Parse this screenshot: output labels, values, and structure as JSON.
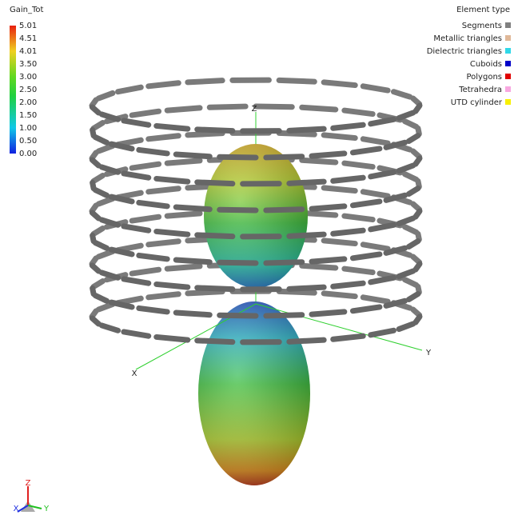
{
  "colorbar": {
    "title": "Gain_Tot",
    "labels": [
      "5.01",
      "4.51",
      "4.01",
      "3.50",
      "3.00",
      "2.50",
      "2.00",
      "1.50",
      "1.00",
      "0.50",
      "0.00"
    ]
  },
  "legend": {
    "title": "Element type",
    "items": [
      {
        "label": "Segments",
        "color": "#808080"
      },
      {
        "label": "Metallic triangles",
        "color": "#e0b898"
      },
      {
        "label": "Dielectric triangles",
        "color": "#30d8e8"
      },
      {
        "label": "Cuboids",
        "color": "#0000c8"
      },
      {
        "label": "Polygons",
        "color": "#e00000"
      },
      {
        "label": "Tetrahedra",
        "color": "#f8a8e0"
      },
      {
        "label": "UTD cylinder",
        "color": "#f8f000"
      }
    ]
  },
  "axes": {
    "z": "Z",
    "x": "X",
    "y": "Y"
  },
  "triad": {
    "z": "Z",
    "x": "X",
    "y": "Y"
  }
}
